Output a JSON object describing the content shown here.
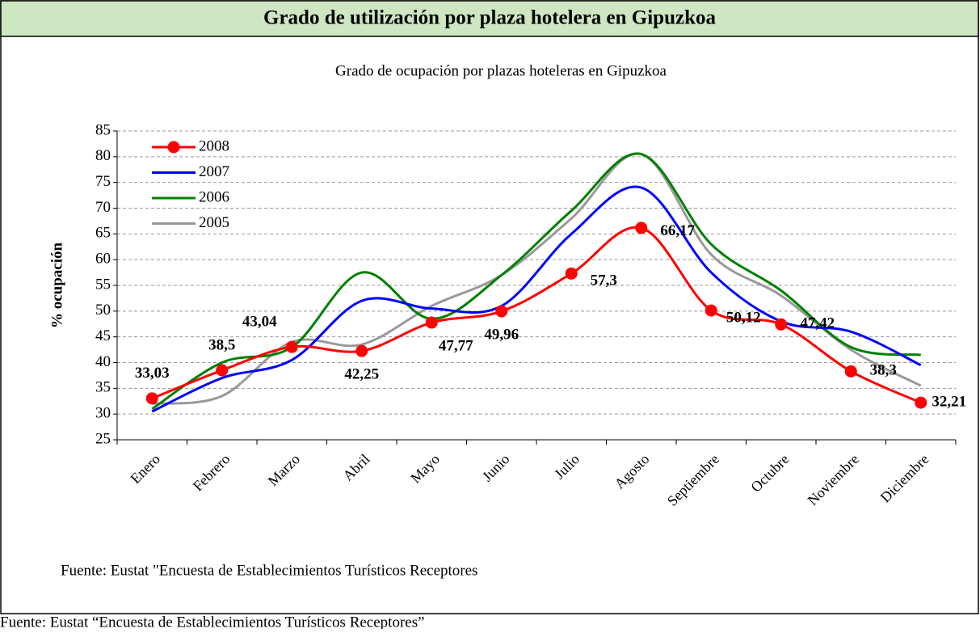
{
  "header": {
    "title": "Grado de utilización por plaza hotelera en Gipuzkoa"
  },
  "chart_data": {
    "type": "line",
    "title": "Grado de ocupación por plazas hoteleras en Gipuzkoa",
    "y_label": "% ocupación",
    "source": "Fuente: Eustat \"Encuesta de Establecimientos Turísticos Receptores",
    "categories": [
      "Enero",
      "Febrero",
      "Marzo",
      "Abril",
      "Mayo",
      "Junio",
      "Julio",
      "Agosto",
      "Septiembre",
      "Octubre",
      "Noviembre",
      "Diciembre"
    ],
    "series": [
      {
        "name": "2008",
        "color": "#ff0000",
        "markers": true,
        "values": [
          33.03,
          38.5,
          43.04,
          42.25,
          47.77,
          49.96,
          57.3,
          66.17,
          50.12,
          47.42,
          38.3,
          32.21
        ],
        "value_labels": [
          "33,03",
          "38,5",
          "43,04",
          "42,25",
          "47,77",
          "49,96",
          "57,3",
          "66,17",
          "50,12",
          "47,42",
          "38,3",
          "32,21"
        ]
      },
      {
        "name": "2007",
        "color": "#0000ff",
        "values": [
          30.5,
          37,
          40.5,
          52,
          50.5,
          51,
          65,
          74,
          57.5,
          48,
          46,
          39.5
        ]
      },
      {
        "name": "2006",
        "color": "#008000",
        "values": [
          31,
          40,
          43,
          57.5,
          48.5,
          57,
          69.5,
          80.5,
          63,
          54,
          43,
          41.5
        ]
      },
      {
        "name": "2005",
        "color": "#999999",
        "values": [
          32,
          33.5,
          44,
          43.5,
          51,
          57,
          68,
          80.5,
          61,
          53,
          42.5,
          35.5
        ]
      }
    ],
    "ylim": [
      25,
      85
    ],
    "yticks": [
      25,
      30,
      35,
      40,
      45,
      50,
      55,
      60,
      65,
      70,
      75,
      80,
      85
    ],
    "grid": true,
    "legend": "top-left"
  },
  "footer": {
    "source": "Fuente: Eustat “Encuesta de Establecimientos Turísticos Receptores”"
  }
}
